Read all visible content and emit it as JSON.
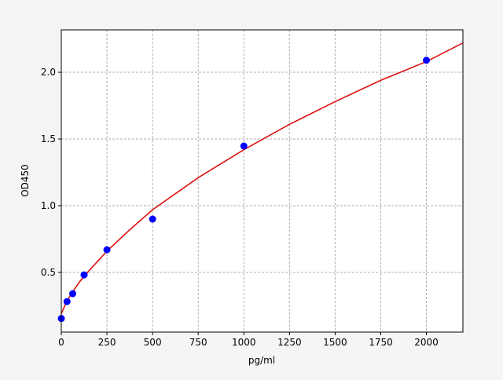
{
  "chart_data": {
    "type": "scatter",
    "title": "",
    "xlabel": "pg/ml",
    "ylabel": "OD450",
    "xlim": [
      0,
      2200
    ],
    "ylim": [
      0.053,
      2.318
    ],
    "xticks": [
      0,
      250,
      500,
      750,
      1000,
      1250,
      1500,
      1750,
      2000
    ],
    "yticks": [
      0.5,
      1.0,
      1.5,
      2.0
    ],
    "ytick_labels": [
      "0.5",
      "1.0",
      "1.5",
      "2.0"
    ],
    "grid": true,
    "series": [
      {
        "type": "scatter",
        "color": "#0000ff",
        "x": [
          0,
          31.25,
          62.5,
          125,
          250,
          500,
          1000,
          2000
        ],
        "y": [
          0.155,
          0.282,
          0.341,
          0.482,
          0.67,
          0.9,
          1.447,
          2.09
        ]
      },
      {
        "type": "line",
        "color": "#dd1111",
        "x": [
          0,
          25,
          50,
          100,
          150,
          250,
          375,
          500,
          750,
          1000,
          1250,
          1500,
          1750,
          2000,
          2200
        ],
        "y": [
          0.19,
          0.27,
          0.33,
          0.43,
          0.51,
          0.66,
          0.82,
          0.97,
          1.21,
          1.42,
          1.61,
          1.78,
          1.94,
          2.08,
          2.22
        ]
      }
    ]
  }
}
